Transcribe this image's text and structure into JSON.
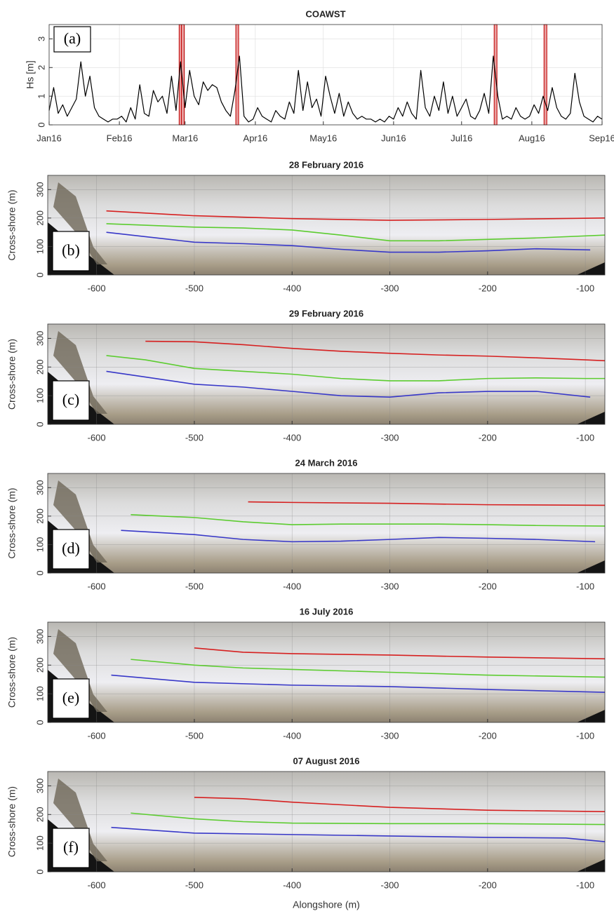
{
  "chart_data": [
    {
      "type": "line",
      "title": "COAWST",
      "panel_label": "(a)",
      "ylabel": "Hs [m]",
      "x": [
        0,
        2,
        4,
        6,
        8,
        10,
        12,
        14,
        16,
        18,
        20,
        22,
        24,
        26,
        28,
        30,
        32,
        34,
        36,
        38,
        40,
        42,
        44,
        46,
        48,
        50,
        52,
        54,
        56,
        58,
        60,
        62,
        64,
        66,
        68,
        70,
        72,
        74,
        76,
        78,
        80,
        82,
        84,
        86,
        88,
        90,
        92,
        94,
        96,
        98,
        100,
        102,
        104,
        106,
        108,
        110,
        112,
        114,
        116,
        118,
        120,
        122,
        124,
        126,
        128,
        130,
        132,
        134,
        136,
        138,
        140,
        142,
        144,
        146,
        148,
        150,
        152,
        154,
        156,
        158,
        160,
        162,
        164,
        166,
        168,
        170,
        172,
        174,
        176,
        178,
        180,
        182,
        184,
        186,
        188,
        190,
        192,
        194,
        196,
        198,
        200,
        202,
        204,
        206,
        208,
        210,
        212,
        214,
        216,
        218,
        220,
        222,
        224,
        226,
        228,
        230,
        232,
        234,
        236,
        238,
        240,
        242,
        244
      ],
      "series": [
        {
          "color": "#000000",
          "values": [
            0.5,
            1.3,
            0.4,
            0.7,
            0.3,
            0.6,
            0.9,
            2.2,
            1.0,
            1.7,
            0.6,
            0.3,
            0.2,
            0.1,
            0.2,
            0.2,
            0.3,
            0.1,
            0.6,
            0.2,
            1.4,
            0.4,
            0.3,
            1.2,
            0.8,
            1.0,
            0.4,
            1.7,
            0.5,
            2.2,
            0.6,
            1.9,
            1.0,
            0.7,
            1.5,
            1.2,
            1.4,
            1.3,
            0.8,
            0.5,
            0.3,
            1.2,
            2.4,
            0.3,
            0.1,
            0.2,
            0.6,
            0.3,
            0.2,
            0.1,
            0.5,
            0.3,
            0.2,
            0.8,
            0.4,
            1.9,
            0.5,
            1.5,
            0.6,
            0.9,
            0.3,
            1.7,
            1.0,
            0.4,
            1.1,
            0.3,
            0.8,
            0.4,
            0.2,
            0.3,
            0.2,
            0.2,
            0.1,
            0.2,
            0.1,
            0.3,
            0.2,
            0.6,
            0.3,
            0.8,
            0.4,
            0.2,
            1.9,
            0.6,
            0.3,
            1.0,
            0.5,
            1.5,
            0.4,
            1.0,
            0.3,
            0.6,
            0.9,
            0.3,
            0.2,
            0.5,
            1.1,
            0.4,
            2.4,
            1.0,
            0.2,
            0.3,
            0.2,
            0.6,
            0.3,
            0.2,
            0.3,
            0.7,
            0.4,
            1.0,
            0.5,
            1.3,
            0.6,
            0.3,
            0.2,
            0.4,
            1.8,
            0.8,
            0.3,
            0.2,
            0.1,
            0.3,
            0.2
          ]
        }
      ],
      "markers": [
        58,
        59,
        83,
        197,
        219
      ],
      "marker_color": "#c00000",
      "xlim": [
        0,
        244
      ],
      "xticks": [
        {
          "value": 0,
          "label": "Jan16"
        },
        {
          "value": 31,
          "label": "Feb16"
        },
        {
          "value": 60,
          "label": "Mar16"
        },
        {
          "value": 91,
          "label": "Apr16"
        },
        {
          "value": 121,
          "label": "May16"
        },
        {
          "value": 152,
          "label": "Jun16"
        },
        {
          "value": 182,
          "label": "Jul16"
        },
        {
          "value": 213,
          "label": "Aug16"
        },
        {
          "value": 244,
          "label": "Sep16"
        }
      ],
      "ylim": [
        0,
        3.5
      ],
      "yticks": [
        0,
        1,
        2,
        3
      ],
      "grid": true
    },
    {
      "type": "line",
      "title": "28 February 2016",
      "panel_label": "(b)",
      "ylabel": "Cross-shore (m)",
      "xlim": [
        -650,
        -80
      ],
      "xticks": [
        -600,
        -500,
        -400,
        -300,
        -200,
        -100
      ],
      "ylim": [
        0,
        350
      ],
      "yticks": [
        0,
        100,
        200,
        300
      ],
      "grid": true,
      "series": [
        {
          "color": "#d62020",
          "x": [
            -590,
            -500,
            -400,
            -300,
            -200,
            -80
          ],
          "values": [
            225,
            208,
            198,
            192,
            195,
            200
          ]
        },
        {
          "color": "#5ccc30",
          "x": [
            -590,
            -500,
            -450,
            -400,
            -350,
            -300,
            -250,
            -200,
            -150,
            -80
          ],
          "values": [
            180,
            168,
            165,
            158,
            140,
            120,
            120,
            125,
            130,
            140
          ]
        },
        {
          "color": "#3838c8",
          "x": [
            -590,
            -500,
            -450,
            -400,
            -350,
            -300,
            -250,
            -200,
            -150,
            -95
          ],
          "values": [
            150,
            115,
            110,
            103,
            90,
            80,
            80,
            85,
            92,
            88
          ]
        }
      ]
    },
    {
      "type": "line",
      "title": "29 February 2016",
      "panel_label": "(c)",
      "ylabel": "Cross-shore (m)",
      "xlim": [
        -650,
        -80
      ],
      "xticks": [
        -600,
        -500,
        -400,
        -300,
        -200,
        -100
      ],
      "ylim": [
        0,
        350
      ],
      "yticks": [
        0,
        100,
        200,
        300
      ],
      "grid": true,
      "series": [
        {
          "color": "#d62020",
          "x": [
            -550,
            -500,
            -450,
            -400,
            -350,
            -300,
            -250,
            -200,
            -150,
            -100,
            -80
          ],
          "values": [
            290,
            288,
            278,
            265,
            255,
            248,
            242,
            238,
            232,
            225,
            222
          ]
        },
        {
          "color": "#5ccc30",
          "x": [
            -590,
            -550,
            -500,
            -450,
            -400,
            -350,
            -300,
            -250,
            -200,
            -150,
            -100,
            -80
          ],
          "values": [
            240,
            225,
            195,
            185,
            175,
            160,
            152,
            152,
            160,
            162,
            160,
            160
          ]
        },
        {
          "color": "#3838c8",
          "x": [
            -590,
            -550,
            -500,
            -450,
            -400,
            -350,
            -300,
            -250,
            -200,
            -150,
            -95
          ],
          "values": [
            185,
            165,
            140,
            130,
            115,
            100,
            95,
            110,
            115,
            115,
            95
          ]
        }
      ]
    },
    {
      "type": "line",
      "title": "24 March 2016",
      "panel_label": "(d)",
      "ylabel": "Cross-shore (m)",
      "xlim": [
        -650,
        -80
      ],
      "xticks": [
        -600,
        -500,
        -400,
        -300,
        -200,
        -100
      ],
      "ylim": [
        0,
        350
      ],
      "yticks": [
        0,
        100,
        200,
        300
      ],
      "grid": true,
      "series": [
        {
          "color": "#d62020",
          "x": [
            -445,
            -400,
            -300,
            -200,
            -80
          ],
          "values": [
            250,
            248,
            245,
            240,
            238
          ]
        },
        {
          "color": "#5ccc30",
          "x": [
            -565,
            -500,
            -450,
            -400,
            -350,
            -300,
            -250,
            -200,
            -150,
            -80
          ],
          "values": [
            205,
            195,
            180,
            170,
            172,
            172,
            172,
            170,
            167,
            165
          ]
        },
        {
          "color": "#3838c8",
          "x": [
            -575,
            -500,
            -450,
            -400,
            -350,
            -300,
            -250,
            -200,
            -150,
            -90
          ],
          "values": [
            150,
            135,
            118,
            110,
            112,
            118,
            125,
            122,
            118,
            110
          ]
        }
      ]
    },
    {
      "type": "line",
      "title": "16 July 2016",
      "panel_label": "(e)",
      "ylabel": "Cross-shore (m)",
      "xlim": [
        -650,
        -80
      ],
      "xticks": [
        -600,
        -500,
        -400,
        -300,
        -200,
        -100
      ],
      "ylim": [
        0,
        350
      ],
      "yticks": [
        0,
        100,
        200,
        300
      ],
      "grid": true,
      "series": [
        {
          "color": "#d62020",
          "x": [
            -500,
            -450,
            -400,
            -300,
            -200,
            -80
          ],
          "values": [
            260,
            245,
            240,
            235,
            228,
            222
          ]
        },
        {
          "color": "#5ccc30",
          "x": [
            -565,
            -500,
            -450,
            -400,
            -300,
            -200,
            -80
          ],
          "values": [
            220,
            200,
            190,
            185,
            175,
            165,
            158
          ]
        },
        {
          "color": "#3838c8",
          "x": [
            -585,
            -500,
            -400,
            -300,
            -200,
            -80
          ],
          "values": [
            165,
            140,
            130,
            125,
            115,
            105
          ]
        }
      ]
    },
    {
      "type": "line",
      "title": "07 August 2016",
      "panel_label": "(f)",
      "ylabel": "Cross-shore (m)",
      "xlabel": "Alongshore (m)",
      "xlim": [
        -650,
        -80
      ],
      "xticks": [
        -600,
        -500,
        -400,
        -300,
        -200,
        -100
      ],
      "ylim": [
        0,
        350
      ],
      "yticks": [
        0,
        100,
        200,
        300
      ],
      "grid": true,
      "series": [
        {
          "color": "#d62020",
          "x": [
            -500,
            -450,
            -400,
            -300,
            -200,
            -80
          ],
          "values": [
            260,
            255,
            243,
            225,
            215,
            210
          ]
        },
        {
          "color": "#5ccc30",
          "x": [
            -565,
            -500,
            -450,
            -400,
            -300,
            -200,
            -80
          ],
          "values": [
            205,
            185,
            175,
            170,
            168,
            168,
            165
          ]
        },
        {
          "color": "#3838c8",
          "x": [
            -585,
            -500,
            -400,
            -300,
            -200,
            -120,
            -80
          ],
          "values": [
            155,
            135,
            130,
            125,
            120,
            118,
            105
          ]
        }
      ]
    }
  ]
}
